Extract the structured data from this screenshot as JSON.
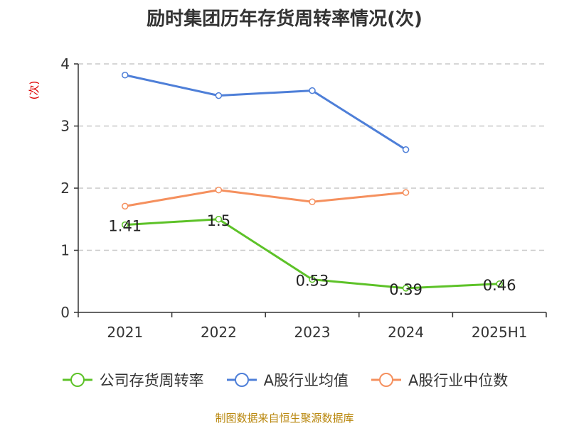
{
  "title": "励时集团历年存货周转率情况(次)",
  "source": "制图数据来自恒生聚源数据库",
  "chart_data": {
    "type": "line",
    "title": "励时集团历年存货周转率情况(次)",
    "ylabel": "(次)",
    "xlabel": "",
    "categories": [
      "2021",
      "2022",
      "2023",
      "2024",
      "2025H1"
    ],
    "ylim": [
      0,
      4
    ],
    "yticks": [
      0,
      1,
      2,
      3,
      4
    ],
    "grid": true,
    "legend_position": "bottom",
    "series": [
      {
        "name": "公司存货周转率",
        "color": "#5dc228",
        "values": [
          1.41,
          1.5,
          0.53,
          0.39,
          0.46
        ],
        "labels": [
          "1.41",
          "1.5",
          "0.53",
          "0.39",
          "0.46"
        ]
      },
      {
        "name": "A股行业均值",
        "color": "#4e7fd8",
        "values": [
          3.82,
          3.49,
          3.57,
          2.62,
          null
        ],
        "labels": []
      },
      {
        "name": "A股行业中位数",
        "color": "#f5905e",
        "values": [
          1.71,
          1.97,
          1.78,
          1.93,
          null
        ],
        "labels": []
      }
    ]
  }
}
